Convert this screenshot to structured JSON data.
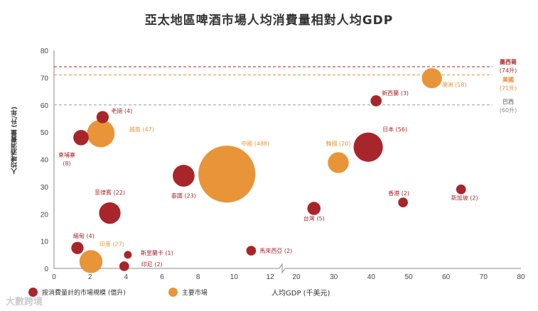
{
  "chart_data": {
    "type": "scatter",
    "subtype": "bubble",
    "title": "亞太地區啤酒市場人均消費量相對人均GDP",
    "xlabel": "人均GDP (千美元)",
    "ylabel": "人均啤酒消費量 (升/年)",
    "x_ticks": [
      "0",
      "2",
      "4",
      "6",
      "8",
      "10",
      "12",
      "20",
      "30",
      "40",
      "50",
      "60",
      "70",
      "80"
    ],
    "x_axis_break": [
      12,
      20
    ],
    "y_ticks": [
      "0",
      "10",
      "20",
      "30",
      "40",
      "50",
      "60",
      "70",
      "80"
    ],
    "ylim": [
      0,
      80
    ],
    "reference_lines": [
      {
        "name": "墨西哥",
        "value": 74,
        "label": "(74升)",
        "color": "#a8262b"
      },
      {
        "name": "美國",
        "value": 71,
        "label": "(71升)",
        "color": "#e8903a"
      },
      {
        "name": "巴西",
        "value": 60,
        "label": "(60升)",
        "color": "#999999"
      }
    ],
    "legend": [
      {
        "label": "按消費量計的市場規模 (億升)",
        "color": "#a8262b"
      },
      {
        "label": "主要市場",
        "color": "#e8953a"
      }
    ],
    "points": [
      {
        "name": "澳洲",
        "size": 18,
        "x": 56.2,
        "y": 69.8,
        "major": true
      },
      {
        "name": "新西蘭",
        "size": 3,
        "x": 41.3,
        "y": 61.5,
        "major": false
      },
      {
        "name": "日本",
        "size": 56,
        "x": 39.2,
        "y": 44.5,
        "major": false
      },
      {
        "name": "韓國",
        "size": 20,
        "x": 31.2,
        "y": 38.8,
        "major": true
      },
      {
        "name": "台灣",
        "size": 5,
        "x": 24.7,
        "y": 22,
        "major": false
      },
      {
        "name": "香港",
        "size": 2,
        "x": 48.5,
        "y": 24.2,
        "major": false
      },
      {
        "name": "新加坡",
        "size": 2,
        "x": 64,
        "y": 29,
        "major": false
      },
      {
        "name": "馬來西亞",
        "size": 2,
        "x": 10.95,
        "y": 6.5,
        "major": false
      },
      {
        "name": "中國",
        "size": 488,
        "x": 9.6,
        "y": 34.6,
        "major": true
      },
      {
        "name": "泰國",
        "size": 23,
        "x": 7.2,
        "y": 34,
        "major": false
      },
      {
        "name": "越南",
        "size": 47,
        "x": 2.6,
        "y": 49.5,
        "major": true
      },
      {
        "name": "老撾",
        "size": 4,
        "x": 2.7,
        "y": 55.5,
        "major": false
      },
      {
        "name": "柬埔寨",
        "size": 8,
        "x": 1.5,
        "y": 48,
        "major": false
      },
      {
        "name": "菲律賓",
        "size": 22,
        "x": 3.1,
        "y": 20.3,
        "major": false
      },
      {
        "name": "緬甸",
        "size": 4,
        "x": 1.3,
        "y": 7.5,
        "major": false
      },
      {
        "name": "印度",
        "size": 27,
        "x": 2.05,
        "y": 2.5,
        "major": true
      },
      {
        "name": "斯里蘭卡",
        "size": 1,
        "x": 4.1,
        "y": 5,
        "major": false
      },
      {
        "name": "印尼",
        "size": 2,
        "x": 3.9,
        "y": 0.8,
        "major": false
      }
    ]
  },
  "watermark": "大數跨境"
}
